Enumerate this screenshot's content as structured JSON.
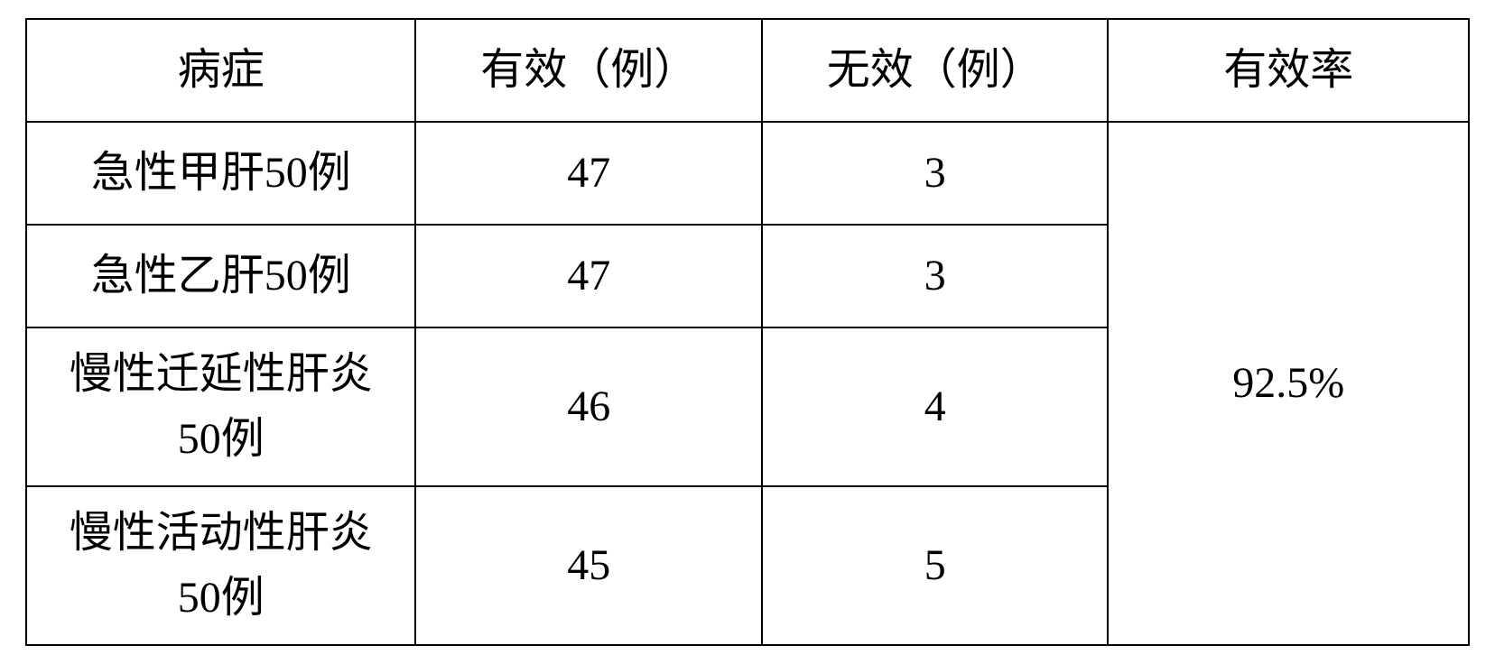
{
  "table": {
    "columns": [
      "病症",
      "有效（例）",
      "无效（例）",
      "有效率"
    ],
    "rows": [
      {
        "condition": "急性甲肝50例",
        "effective": "47",
        "ineffective": "3"
      },
      {
        "condition": "急性乙肝50例",
        "effective": "47",
        "ineffective": "3"
      },
      {
        "condition_line1": "慢性迁延性肝炎",
        "condition_line2": "50例",
        "effective": "46",
        "ineffective": "4"
      },
      {
        "condition_line1": "慢性活动性肝炎",
        "condition_line2": "50例",
        "effective": "45",
        "ineffective": "5"
      }
    ],
    "effectiveness_rate": "92.5%",
    "styling": {
      "border_color": "#000000",
      "border_width": 2,
      "background_color": "#ffffff",
      "text_color": "#000000",
      "font_family": "SimSun",
      "font_size": 48,
      "cell_align": "center",
      "column_widths": [
        "27%",
        "24%",
        "24%",
        "25%"
      ]
    }
  }
}
